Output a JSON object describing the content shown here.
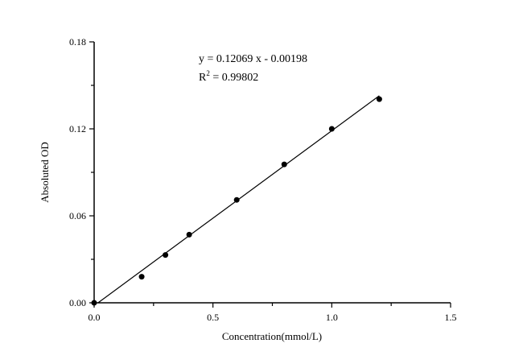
{
  "chart_data": {
    "type": "scatter",
    "title": "",
    "xlabel": "Concentration(mmol/L)",
    "ylabel": "Absoluted OD",
    "xlim": [
      0.0,
      1.5
    ],
    "ylim": [
      0.0,
      0.18
    ],
    "x_ticks": [
      "0.0",
      "0.5",
      "1.0",
      "1.5"
    ],
    "y_ticks": [
      "0.00",
      "0.06",
      "0.12",
      "0.18"
    ],
    "grid": false,
    "legend": null,
    "series": [
      {
        "name": "Absoluted OD",
        "marker": "filled-circle",
        "x": [
          0.0,
          0.2,
          0.3,
          0.4,
          0.6,
          0.8,
          1.0,
          1.2
        ],
        "y": [
          0.0,
          0.018,
          0.033,
          0.047,
          0.071,
          0.0955,
          0.12,
          0.1405
        ]
      }
    ],
    "fit": {
      "type": "linear",
      "slope": 0.12069,
      "intercept": -0.00198,
      "r_squared": 0.99802,
      "x_range": [
        0.0,
        1.2
      ]
    },
    "annotations": {
      "equation": "y = 0.12069 x - 0.00198",
      "r2_prefix": "R",
      "r2_sup": "2",
      "r2_value": " = 0.99802"
    }
  }
}
